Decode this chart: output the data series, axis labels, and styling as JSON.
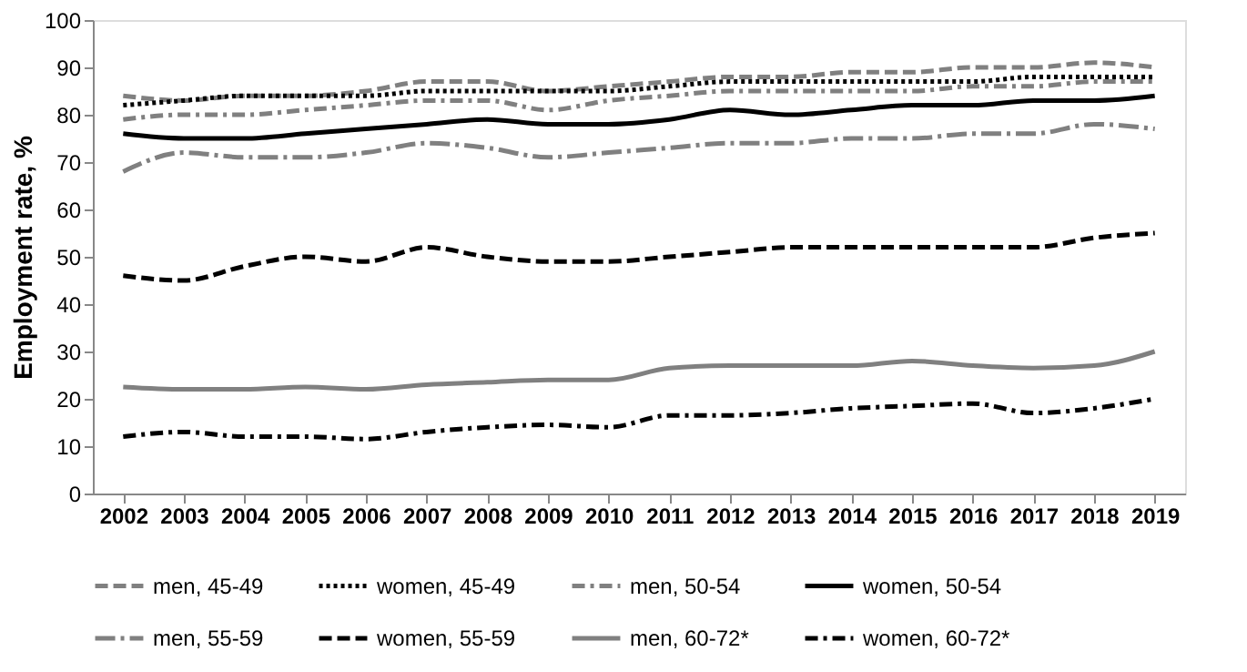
{
  "chart_data": {
    "type": "line",
    "ylabel": "Employment rate, %",
    "categories": [
      "2002",
      "2003",
      "2004",
      "2005",
      "2006",
      "2007",
      "2008",
      "2009",
      "2010",
      "2011",
      "2012",
      "2013",
      "2014",
      "2015",
      "2016",
      "2017",
      "2018",
      "2019"
    ],
    "ylim": [
      0,
      100
    ],
    "yticks": [
      0,
      10,
      20,
      30,
      40,
      50,
      60,
      70,
      80,
      90,
      100
    ],
    "grid": false,
    "legend": "bottom",
    "marker": "none",
    "series": [
      {
        "name": "men, 45-49",
        "color": "#808080",
        "line_style": "dashed",
        "values": [
          84,
          83,
          84,
          84,
          85,
          87,
          87,
          85,
          86,
          87,
          88,
          88,
          89,
          89,
          90,
          90,
          91,
          90
        ]
      },
      {
        "name": "women, 45-49",
        "color": "#000000",
        "line_style": "dotted",
        "values": [
          82,
          83,
          84,
          84,
          84,
          85,
          85,
          85,
          85,
          86,
          87,
          87,
          87,
          87,
          87,
          88,
          88,
          88
        ]
      },
      {
        "name": "men, 50-54",
        "color": "#808080",
        "line_style": "dashdot",
        "values": [
          79,
          80,
          80,
          81,
          82,
          83,
          83,
          81,
          83,
          84,
          85,
          85,
          85,
          85,
          86,
          86,
          87,
          87
        ]
      },
      {
        "name": "women, 50-54",
        "color": "#000000",
        "line_style": "solid",
        "values": [
          76,
          75,
          75,
          76,
          77,
          78,
          79,
          78,
          78,
          79,
          81,
          80,
          81,
          82,
          82,
          83,
          83,
          84
        ]
      },
      {
        "name": "men, 55-59",
        "color": "#808080",
        "line_style": "longdashdot",
        "values": [
          68,
          72,
          71,
          71,
          72,
          74,
          73,
          71,
          72,
          73,
          74,
          74,
          75,
          75,
          76,
          76,
          78,
          77
        ]
      },
      {
        "name": "women, 55-59",
        "color": "#000000",
        "line_style": "dashed",
        "values": [
          46,
          45,
          48,
          50,
          49,
          52,
          50,
          49,
          49,
          50,
          51,
          52,
          52,
          52,
          52,
          52,
          54,
          55
        ]
      },
      {
        "name": "men, 60-72*",
        "color": "#808080",
        "line_style": "solid",
        "values": [
          22.5,
          22,
          22,
          22.5,
          22,
          23,
          23.5,
          24,
          24,
          26.5,
          27,
          27,
          27,
          28,
          27,
          26.5,
          27,
          30
        ]
      },
      {
        "name": "women, 60-72*",
        "color": "#000000",
        "line_style": "dashdot",
        "values": [
          12,
          13,
          12,
          12,
          11.5,
          13,
          14,
          14.5,
          14,
          16.5,
          16.5,
          17,
          18,
          18.5,
          19,
          17,
          18,
          20
        ]
      }
    ]
  }
}
